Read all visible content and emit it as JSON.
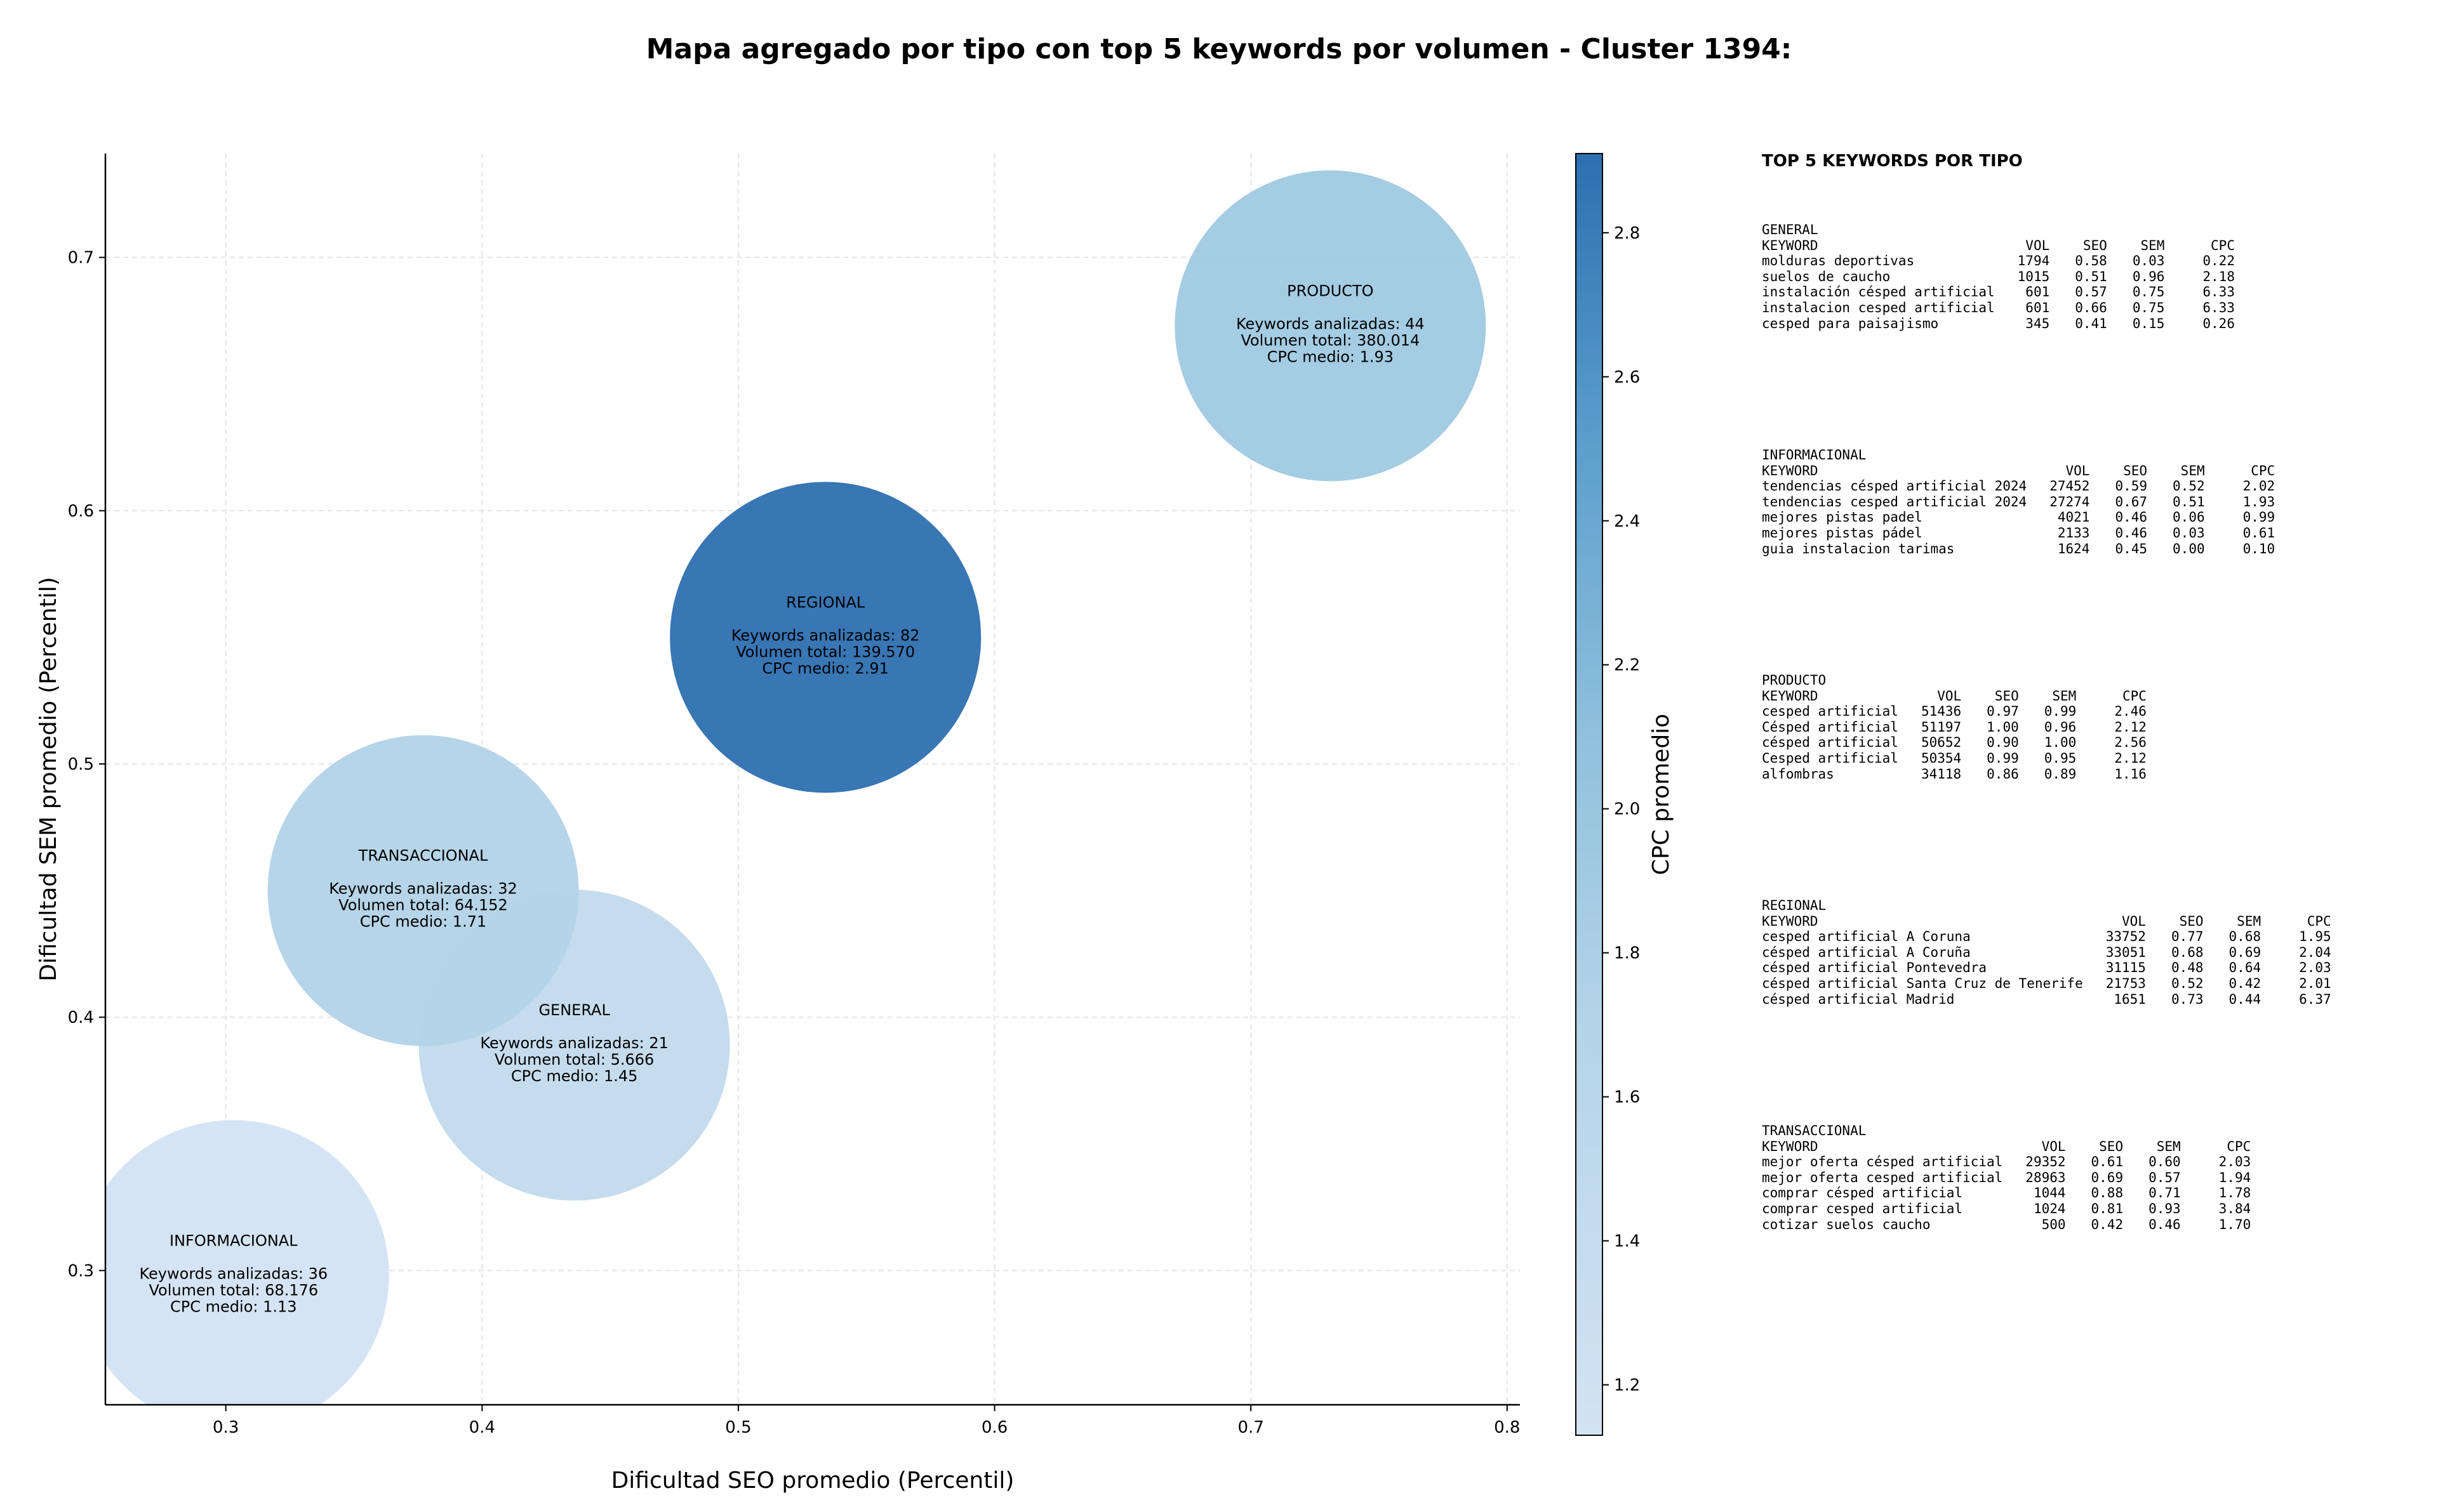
{
  "title": "Mapa agregado por tipo con top 5 keywords por volumen - Cluster 1394:",
  "chart_data": {
    "type": "scatter",
    "xlabel": "Dificultad SEO promedio (Percentil)",
    "ylabel": "Dificultad SEM promedio (Percentil)",
    "colorbar_label": "CPC promedio",
    "xlim": [
      0.253,
      0.805
    ],
    "ylim": [
      0.247,
      0.741
    ],
    "xticks": [
      "0.3",
      "0.4",
      "0.5",
      "0.6",
      "0.7",
      "0.8"
    ],
    "yticks": [
      "0.3",
      "0.4",
      "0.5",
      "0.6",
      "0.7"
    ],
    "colorbar_range": [
      1.13,
      2.91
    ],
    "colorbar_ticks": [
      "1.2",
      "1.4",
      "1.6",
      "1.8",
      "2.0",
      "2.2",
      "2.4",
      "2.6",
      "2.8"
    ],
    "grid": true,
    "colormap": [
      "#c6dbef",
      "#9ecae1",
      "#6baed6",
      "#2171b5"
    ],
    "points": [
      {
        "label": "PRODUCTO",
        "x": 0.731,
        "y": 0.673,
        "cpc": 1.93,
        "lines": [
          "Keywords analizadas: 44",
          "Volumen total: 380.014",
          "CPC medio: 1.93"
        ]
      },
      {
        "label": "REGIONAL",
        "x": 0.534,
        "y": 0.55,
        "cpc": 2.91,
        "lines": [
          "Keywords analizadas: 82",
          "Volumen total: 139.570",
          "CPC medio: 2.91"
        ]
      },
      {
        "label": "TRANSACCIONAL",
        "x": 0.377,
        "y": 0.45,
        "cpc": 1.71,
        "lines": [
          "Keywords analizadas: 32",
          "Volumen total: 64.152",
          "CPC medio: 1.71"
        ]
      },
      {
        "label": "GENERAL",
        "x": 0.436,
        "y": 0.389,
        "cpc": 1.45,
        "lines": [
          "Keywords analizadas: 21",
          "Volumen total: 5.666",
          "CPC medio: 1.45"
        ]
      },
      {
        "label": "INFORMACIONAL",
        "x": 0.303,
        "y": 0.298,
        "cpc": 1.13,
        "lines": [
          "Keywords analizadas: 36",
          "Volumen total: 68.176",
          "CPC medio: 1.13"
        ]
      }
    ]
  },
  "table_panel": {
    "title": "TOP 5 KEYWORDS POR TIPO",
    "headers": [
      "KEYWORD",
      "VOL",
      "SEO",
      "SEM",
      "CPC"
    ],
    "groups": [
      {
        "name": "GENERAL",
        "rows": [
          [
            "molduras deportivas",
            "1794",
            "0.58",
            "0.03",
            "0.22"
          ],
          [
            "suelos de caucho",
            "1015",
            "0.51",
            "0.96",
            "2.18"
          ],
          [
            "instalación césped artificial",
            "601",
            "0.57",
            "0.75",
            "6.33"
          ],
          [
            "instalacion cesped artificial",
            "601",
            "0.66",
            "0.75",
            "6.33"
          ],
          [
            "cesped para paisajismo",
            "345",
            "0.41",
            "0.15",
            "0.26"
          ]
        ]
      },
      {
        "name": "INFORMACIONAL",
        "rows": [
          [
            "tendencias césped artificial 2024",
            "27452",
            "0.59",
            "0.52",
            "2.02"
          ],
          [
            "tendencias cesped artificial 2024",
            "27274",
            "0.67",
            "0.51",
            "1.93"
          ],
          [
            "mejores pistas padel",
            "4021",
            "0.46",
            "0.06",
            "0.99"
          ],
          [
            "mejores pistas pádel",
            "2133",
            "0.46",
            "0.03",
            "0.61"
          ],
          [
            "guia instalacion tarimas",
            "1624",
            "0.45",
            "0.00",
            "0.10"
          ]
        ]
      },
      {
        "name": "PRODUCTO",
        "rows": [
          [
            "cesped artificial",
            "51436",
            "0.97",
            "0.99",
            "2.46"
          ],
          [
            "Césped artificial",
            "51197",
            "1.00",
            "0.96",
            "2.12"
          ],
          [
            "césped artificial",
            "50652",
            "0.90",
            "1.00",
            "2.56"
          ],
          [
            "Cesped artificial",
            "50354",
            "0.99",
            "0.95",
            "2.12"
          ],
          [
            "alfombras",
            "34118",
            "0.86",
            "0.89",
            "1.16"
          ]
        ]
      },
      {
        "name": "REGIONAL",
        "rows": [
          [
            "cesped artificial A Coruna",
            "33752",
            "0.77",
            "0.68",
            "1.95"
          ],
          [
            "césped artificial A Coruña",
            "33051",
            "0.68",
            "0.69",
            "2.04"
          ],
          [
            "césped artificial Pontevedra",
            "31115",
            "0.48",
            "0.64",
            "2.03"
          ],
          [
            "césped artificial Santa Cruz de Tenerife",
            "21753",
            "0.52",
            "0.42",
            "2.01"
          ],
          [
            "césped artificial Madrid",
            "1651",
            "0.73",
            "0.44",
            "6.37"
          ]
        ]
      },
      {
        "name": "TRANSACCIONAL",
        "rows": [
          [
            "mejor oferta césped artificial",
            "29352",
            "0.61",
            "0.60",
            "2.03"
          ],
          [
            "mejor oferta cesped artificial",
            "28963",
            "0.69",
            "0.57",
            "1.94"
          ],
          [
            "comprar césped artificial",
            "1044",
            "0.88",
            "0.71",
            "1.78"
          ],
          [
            "comprar cesped artificial",
            "1024",
            "0.81",
            "0.93",
            "3.84"
          ],
          [
            "cotizar suelos caucho",
            "500",
            "0.42",
            "0.46",
            "1.70"
          ]
        ]
      }
    ]
  }
}
